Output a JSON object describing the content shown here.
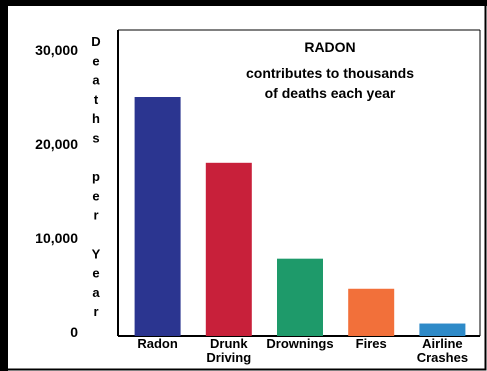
{
  "chart_data": {
    "type": "bar",
    "title": "RADON",
    "subtitle_lines": [
      "contributes to thousands",
      "of deaths each year"
    ],
    "ylabel": "Deaths per Year",
    "ylabel_letters": [
      "D",
      "e",
      "a",
      "t",
      "h",
      "s",
      "",
      "p",
      "e",
      "r",
      "",
      "Y",
      "e",
      "a",
      "r"
    ],
    "yticks": [
      "30,000",
      "20,000",
      "10,000",
      "0"
    ],
    "ytick_values": [
      30000,
      20000,
      10000,
      0
    ],
    "ylim": [
      0,
      30000
    ],
    "categories": [
      "Radon",
      "Drunk Driving",
      "Drownings",
      "Fires",
      "Airline Crashes"
    ],
    "category_label_lines": [
      [
        "Radon"
      ],
      [
        "Drunk",
        "Driving"
      ],
      [
        "Drownings"
      ],
      [
        "Fires"
      ],
      [
        "Airline",
        "Crashes"
      ]
    ],
    "values": [
      25000,
      18000,
      7800,
      4600,
      900
    ],
    "colors": [
      "#2b3590",
      "#c8203a",
      "#1e9a6a",
      "#f2703a",
      "#2e8ac8"
    ],
    "grid": false
  }
}
